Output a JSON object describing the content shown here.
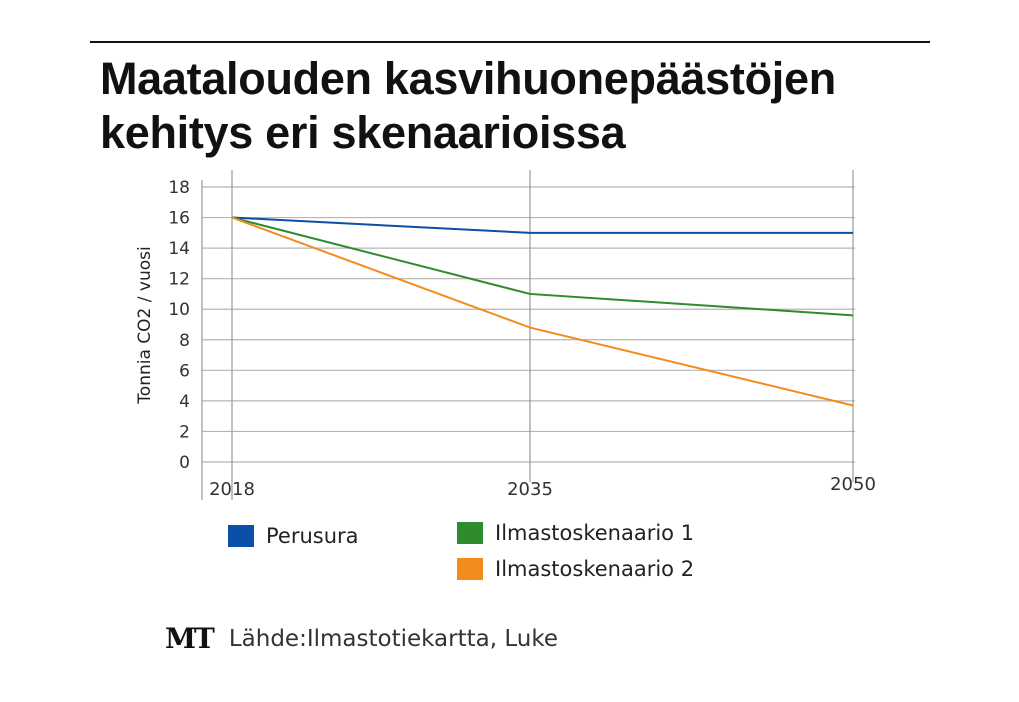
{
  "title_line1": "Maatalouden kasvihuonepäästöjen",
  "title_line2": "kehitys eri skenaarioissa",
  "chart_data": {
    "type": "line",
    "title": "Maatalouden kasvihuonepäästöjen kehitys eri skenaarioissa",
    "xlabel": "",
    "ylabel": "Tonnia CO2 / vuosi",
    "categories": [
      "2018",
      "2035",
      "2050"
    ],
    "ylim": [
      0,
      18
    ],
    "yticks": [
      0,
      2,
      4,
      6,
      8,
      10,
      12,
      14,
      16,
      18
    ],
    "grid": true,
    "legend_position": "bottom",
    "series": [
      {
        "name": "Perusura",
        "color": "#0a4fa8",
        "values": [
          16,
          15,
          15
        ]
      },
      {
        "name": "Ilmastoskenaario 1",
        "color": "#2e8b2e",
        "values": [
          16,
          11,
          9.6
        ]
      },
      {
        "name": "Ilmastoskenaario 2",
        "color": "#f28c1c",
        "values": [
          16,
          8.8,
          3.7
        ]
      }
    ]
  },
  "source": {
    "logo": "MT",
    "text": "Lähde:Ilmastotiekartta, Luke"
  }
}
